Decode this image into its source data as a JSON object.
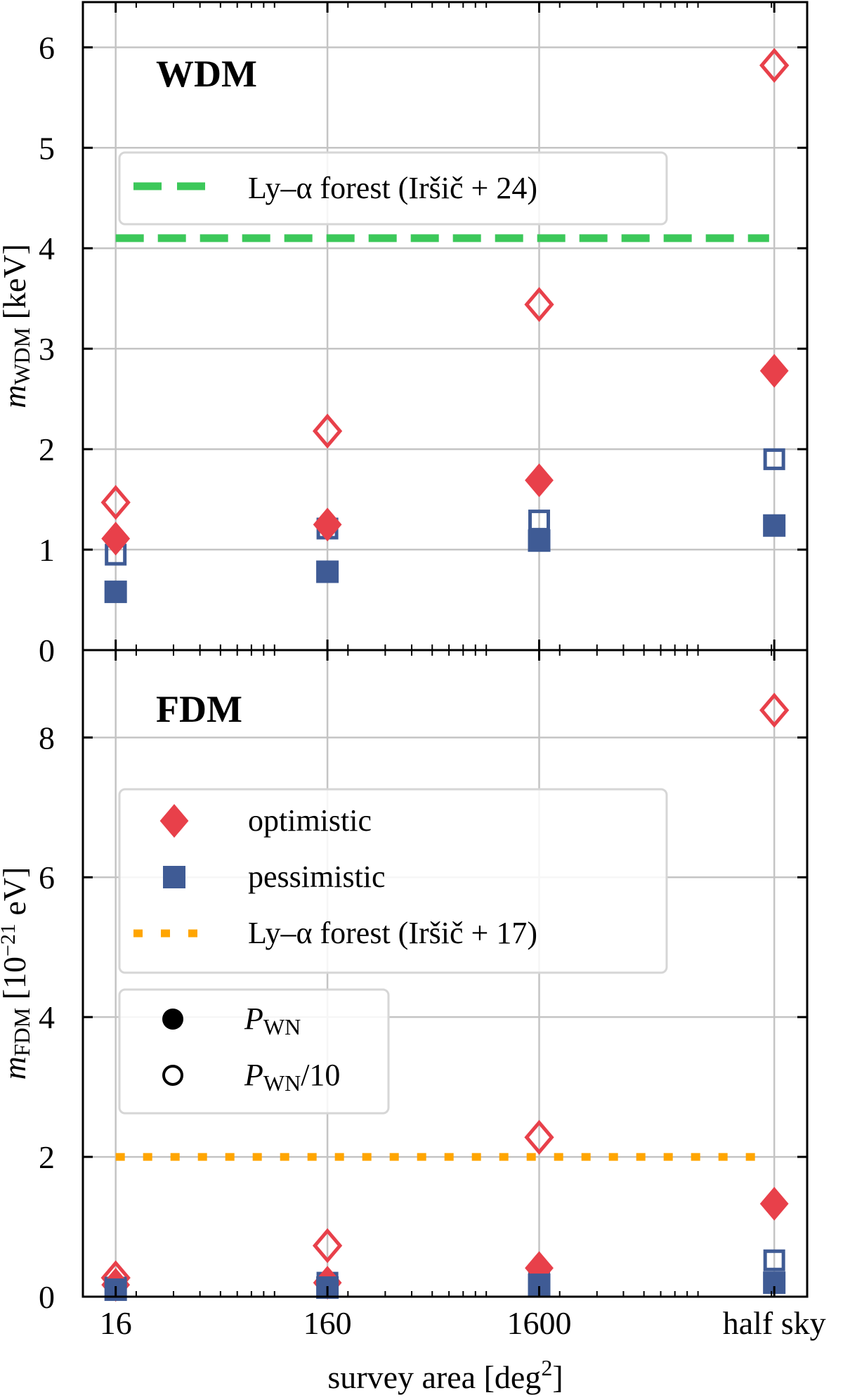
{
  "colors": {
    "optimistic": "#e8404a",
    "pessimistic": "#3f5b95",
    "lya_wdm": "#3cc85a",
    "lya_fdm": "#ffa500"
  },
  "chart_data": [
    {
      "type": "scatter",
      "title": "WDM",
      "ylabel": {
        "symbol": "m",
        "subscript": "WDM",
        "unit": "[keV]"
      },
      "xlabel": {
        "text": "survey area [deg",
        "superscript": "2",
        "close": "]"
      },
      "xscale": "log",
      "xlim": [
        11.2,
        29500
      ],
      "ylim": [
        0,
        6.45
      ],
      "yticks": [
        0,
        1,
        2,
        3,
        4,
        5,
        6
      ],
      "xticks": [
        {
          "value": 16,
          "label": "16"
        },
        {
          "value": 160,
          "label": "160"
        },
        {
          "value": 1600,
          "label": "1600"
        },
        {
          "value": 20626,
          "label": "half sky"
        }
      ],
      "grid": true,
      "x": [
        16,
        160,
        1600,
        20626
      ],
      "series": [
        {
          "name": "optimistic",
          "marker": "diamond",
          "fill": "filled",
          "noise": "P_WN",
          "values": [
            1.11,
            1.25,
            1.69,
            2.78
          ]
        },
        {
          "name": "optimistic",
          "marker": "diamond",
          "fill": "open",
          "noise": "P_WN/10",
          "values": [
            1.47,
            2.18,
            3.44,
            5.82
          ]
        },
        {
          "name": "pessimistic",
          "marker": "square",
          "fill": "filled",
          "noise": "P_WN",
          "values": [
            0.58,
            0.78,
            1.09,
            1.24
          ]
        },
        {
          "name": "pessimistic",
          "marker": "square",
          "fill": "open",
          "noise": "P_WN/10",
          "values": [
            0.95,
            1.21,
            1.29,
            1.9
          ]
        }
      ],
      "hline": {
        "name": "Ly–α forest (Iršič + 24)",
        "value": 4.1,
        "style": "dashed",
        "color": "#3cc85a"
      },
      "legend": {
        "placement": "upper-left",
        "entries": [
          {
            "label": "Ly–α forest (Iršič + 24)",
            "kind": "dashed"
          }
        ]
      }
    },
    {
      "type": "scatter",
      "title": "FDM",
      "ylabel": {
        "symbol": "m",
        "subscript": "FDM",
        "unit": "[10",
        "exponent": "−21",
        "unit2": " eV]"
      },
      "xscale": "log",
      "xlim": [
        11.2,
        29500
      ],
      "ylim": [
        0,
        9.25
      ],
      "yticks": [
        0,
        2,
        4,
        6,
        8
      ],
      "grid": true,
      "x": [
        16,
        160,
        1600,
        20626
      ],
      "series": [
        {
          "name": "optimistic",
          "marker": "diamond",
          "fill": "filled",
          "noise": "P_WN",
          "values": [
            0.17,
            0.2,
            0.41,
            1.33
          ]
        },
        {
          "name": "optimistic",
          "marker": "diamond",
          "fill": "open",
          "noise": "P_WN/10",
          "values": [
            0.27,
            0.73,
            2.28,
            8.39
          ]
        },
        {
          "name": "pessimistic",
          "marker": "square",
          "fill": "filled",
          "noise": "P_WN",
          "values": [
            0.1,
            0.13,
            0.17,
            0.2
          ]
        },
        {
          "name": "pessimistic",
          "marker": "square",
          "fill": "open",
          "noise": "P_WN/10",
          "values": [
            0.13,
            0.2,
            0.24,
            0.52
          ]
        }
      ],
      "hline": {
        "name": "Ly–α forest (Iršič + 17)",
        "value": 2.0,
        "style": "dotted",
        "color": "#ffa500"
      },
      "legend": {
        "placement": "center-left",
        "entries": [
          {
            "label": "optimistic",
            "kind": "diamond"
          },
          {
            "label": "pessimistic",
            "kind": "square"
          },
          {
            "label": "Ly–α forest (Iršič + 17)",
            "kind": "dotted"
          }
        ],
        "noise_entries": [
          {
            "symbol": "P",
            "subscript": "WN",
            "suffix": "",
            "kind": "filled-circle"
          },
          {
            "symbol": "P",
            "subscript": "WN",
            "suffix": "/10",
            "kind": "open-circle"
          }
        ]
      }
    }
  ]
}
